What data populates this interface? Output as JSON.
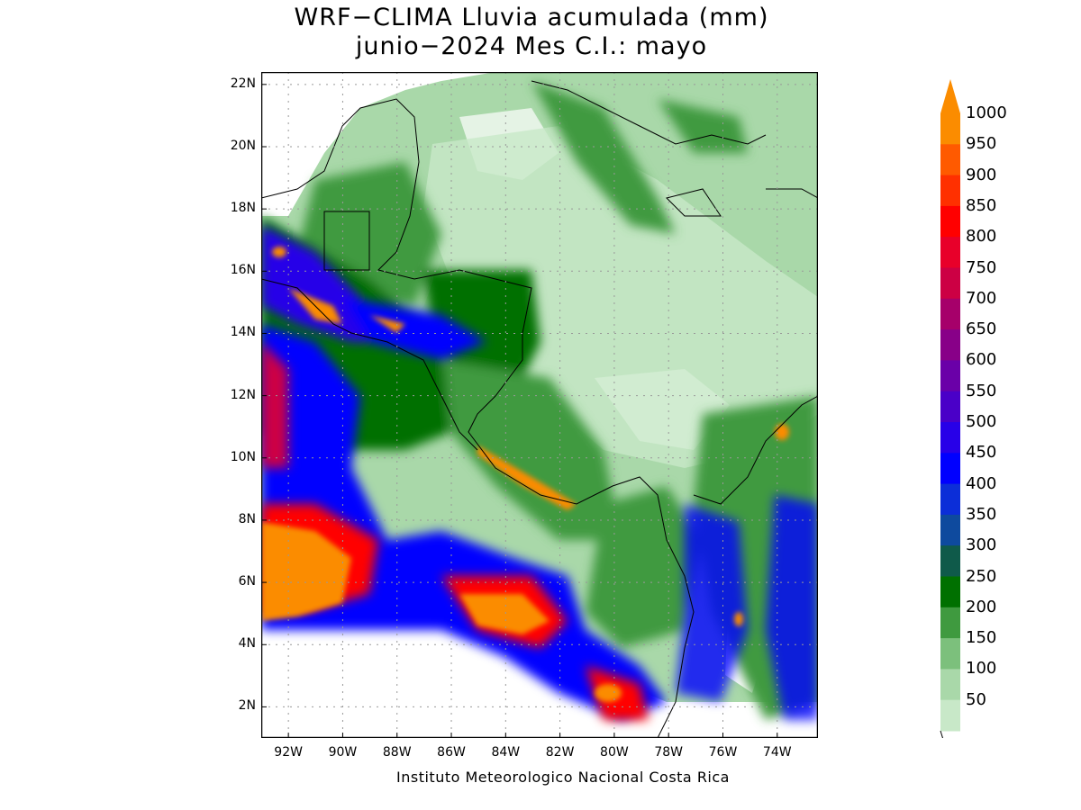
{
  "title": {
    "line1": "WRF−CLIMA Lluvia acumulada (mm)",
    "line2": "junio−2024 Mes C.I.: mayo"
  },
  "footer": "Instituto Meteorologico Nacional Costa Rica",
  "map": {
    "lat_labels": [
      "22N",
      "20N",
      "18N",
      "16N",
      "14N",
      "12N",
      "10N",
      "8N",
      "6N",
      "4N",
      "2N"
    ],
    "lat_values": [
      22,
      20,
      18,
      16,
      14,
      12,
      10,
      8,
      6,
      4,
      2
    ],
    "lon_labels": [
      "92W",
      "90W",
      "88W",
      "86W",
      "84W",
      "82W",
      "80W",
      "78W",
      "76W",
      "74W"
    ],
    "lon_values": [
      -92,
      -90,
      -88,
      -86,
      -84,
      -82,
      -80,
      -78,
      -76,
      -74
    ],
    "lat_range": [
      1,
      22.4
    ],
    "lon_range": [
      -93,
      -72.5
    ]
  },
  "colorbar": {
    "labels": [
      "1000",
      "950",
      "900",
      "850",
      "800",
      "750",
      "700",
      "650",
      "600",
      "550",
      "500",
      "450",
      "400",
      "350",
      "300",
      "250",
      "200",
      "150",
      "100",
      "50"
    ],
    "colors": [
      "#fb8c00",
      "#ff5a00",
      "#ff3000",
      "#ff0000",
      "#e8002a",
      "#cc0044",
      "#a6006a",
      "#880088",
      "#6a00a8",
      "#4a00c8",
      "#2800e8",
      "#0000ff",
      "#0c2ed8",
      "#0e4a9e",
      "#0f5a4a",
      "#007000",
      "#3f9a3f",
      "#7cc07c",
      "#a9d8a9",
      "#c8e8c8"
    ]
  }
}
